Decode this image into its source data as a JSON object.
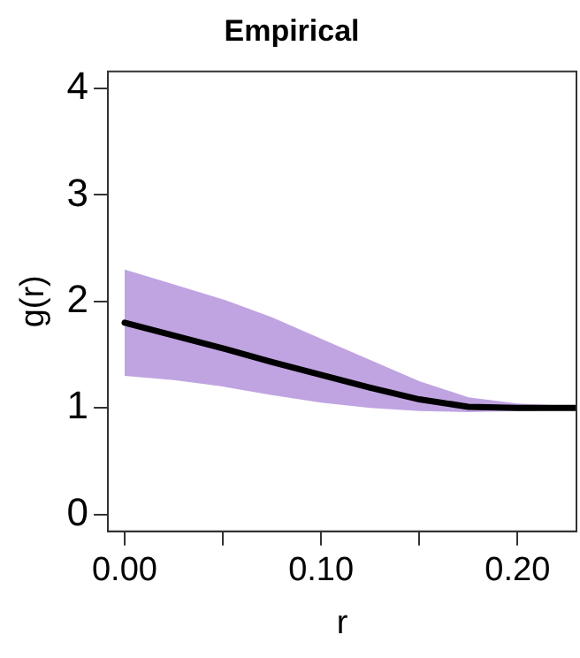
{
  "chart_data": {
    "type": "line",
    "title": "Empirical",
    "xlabel": "r",
    "ylabel": "g(r)",
    "x": [
      0,
      0.025,
      0.05,
      0.075,
      0.1,
      0.125,
      0.15,
      0.175,
      0.2,
      0.225,
      0.23
    ],
    "series": [
      {
        "color": "#000000",
        "values": [
          1.8,
          1.68,
          1.56,
          1.43,
          1.31,
          1.19,
          1.08,
          1.01,
          1.0,
          1.0,
          1.0
        ],
        "lower": [
          1.3,
          1.26,
          1.2,
          1.12,
          1.05,
          1.0,
          0.97,
          0.96,
          0.97,
          0.98,
          0.98
        ],
        "upper": [
          2.3,
          2.16,
          2.02,
          1.85,
          1.65,
          1.45,
          1.25,
          1.1,
          1.04,
          1.02,
          1.02
        ]
      }
    ],
    "xlim": [
      -0.0085,
      0.23
    ],
    "ylim": [
      -0.16,
      4.16
    ],
    "xticks": [
      {
        "value": 0,
        "label": "0.00"
      },
      {
        "value": 0.05,
        "label": null
      },
      {
        "value": 0.1,
        "label": "0.10"
      },
      {
        "value": 0.15,
        "label": null
      },
      {
        "value": 0.2,
        "label": "0.20"
      }
    ],
    "yticks": [
      0,
      1,
      2,
      3,
      4
    ],
    "grid": false,
    "legend": false,
    "marker": "none",
    "line_style": "solid"
  }
}
